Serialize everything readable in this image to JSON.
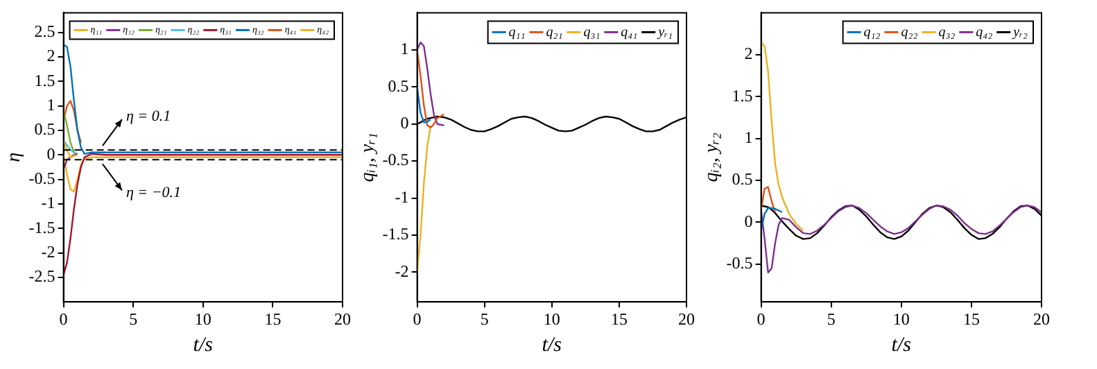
{
  "chart_data": [
    {
      "type": "line",
      "xlabel": "t/s",
      "ylabel": "η",
      "xlim": [
        0,
        20
      ],
      "xticks": [
        0,
        5,
        10,
        15,
        20
      ],
      "ylim": [
        -3,
        2.9
      ],
      "yticks": [
        -2.5,
        -2,
        -1.5,
        -1,
        -0.5,
        0,
        0.5,
        1,
        1.5,
        2,
        2.5
      ],
      "legend": "top right",
      "marker": "none",
      "line_style": "solid",
      "grid": false,
      "x": [
        0,
        0.25,
        0.5,
        0.75,
        1,
        1.25,
        1.5,
        2,
        3,
        5,
        10,
        15,
        20
      ],
      "series": [
        {
          "name": "η₁₁",
          "color": "#edb120",
          "values": [
            0.3,
            0.1,
            -0.05,
            -0.02,
            0,
            null,
            null,
            null,
            null,
            null,
            null,
            null,
            null
          ]
        },
        {
          "name": "η₁₂",
          "color": "#7e2f8e",
          "values": [
            -0.3,
            -0.1,
            -0.05,
            0,
            0.02,
            null,
            null,
            null,
            null,
            null,
            null,
            null,
            null
          ]
        },
        {
          "name": "η₂₁",
          "color": "#77ac30",
          "values": [
            0.9,
            0.6,
            0.25,
            0.05,
            null,
            null,
            null,
            null,
            null,
            null,
            null,
            null,
            null
          ]
        },
        {
          "name": "η₂₂",
          "color": "#4dbeee",
          "values": [
            0.3,
            0.2,
            0.1,
            0.05,
            0.02,
            null,
            null,
            null,
            null,
            null,
            null,
            null,
            null
          ]
        },
        {
          "name": "η₃₁",
          "color": "#a2142f",
          "values": [
            -2.45,
            -2.2,
            -1.7,
            -1.1,
            -0.6,
            -0.25,
            -0.05,
            0.02,
            0,
            0,
            0,
            0,
            0
          ]
        },
        {
          "name": "η₃₂",
          "color": "#0072bd",
          "values": [
            2.25,
            2.2,
            1.8,
            1.1,
            0.5,
            0.15,
            0.02,
            0.05,
            0.05,
            0.05,
            0.05,
            0.05,
            0.05
          ]
        },
        {
          "name": "η₄₁",
          "color": "#d95319",
          "values": [
            0.7,
            1.0,
            1.1,
            0.9,
            0.5,
            0.25,
            null,
            null,
            null,
            null,
            null,
            null,
            null
          ]
        },
        {
          "name": "η₄₂",
          "color": "#edb120",
          "values": [
            0,
            -0.4,
            -0.7,
            -0.75,
            -0.5,
            -0.2,
            -0.08,
            -0.05,
            -0.05,
            -0.05,
            -0.05,
            -0.05,
            -0.05
          ]
        }
      ],
      "ref_lines": [
        {
          "axis": "y",
          "value": 0.1,
          "label": "η = 0.1",
          "color": "#000000",
          "line_style": "dashed"
        },
        {
          "axis": "y",
          "value": -0.1,
          "label": "η = −0.1",
          "color": "#000000",
          "line_style": "dashed"
        }
      ]
    },
    {
      "type": "line",
      "xlabel": "t/s",
      "ylabel": "qᵢ₁, yᵣ₁",
      "xlim": [
        0,
        20
      ],
      "xticks": [
        0,
        5,
        10,
        15,
        20
      ],
      "ylim": [
        -2.4,
        1.5
      ],
      "yticks": [
        -2,
        -1.5,
        -1,
        -0.5,
        0,
        0.5,
        1
      ],
      "legend": "top right",
      "marker": "none",
      "line_style": "solid",
      "grid": false,
      "x": [
        0,
        0.25,
        0.5,
        0.75,
        1,
        1.25,
        1.5,
        2,
        2.5,
        3,
        3.5,
        4,
        4.5,
        5,
        5.5,
        6,
        6.5,
        7,
        7.5,
        8,
        8.5,
        9,
        9.5,
        10,
        10.5,
        11,
        11.5,
        12,
        12.5,
        13,
        13.5,
        14,
        14.5,
        15,
        15.5,
        16,
        16.5,
        17,
        17.5,
        18,
        18.5,
        19,
        19.5,
        20
      ],
      "series": [
        {
          "name": "q₁₁",
          "color": "#0072bd",
          "values": [
            0.5,
            0.15,
            0.02,
            0.03,
            0.06,
            null,
            null,
            null,
            null,
            null,
            null,
            null,
            null,
            null,
            null,
            null,
            null,
            null,
            null,
            null,
            null,
            null,
            null,
            null,
            null,
            null,
            null,
            null,
            null,
            null,
            null,
            null,
            null,
            null,
            null,
            null,
            null,
            null,
            null,
            null,
            null,
            null,
            null,
            null
          ]
        },
        {
          "name": "q₂₁",
          "color": "#d95319",
          "values": [
            1,
            0.65,
            0.25,
            -0.02,
            -0.05,
            0,
            0.08,
            0.13,
            null,
            null,
            null,
            null,
            null,
            null,
            null,
            null,
            null,
            null,
            null,
            null,
            null,
            null,
            null,
            null,
            null,
            null,
            null,
            null,
            null,
            null,
            null,
            null,
            null,
            null,
            null,
            null,
            null,
            null,
            null,
            null,
            null,
            null,
            null,
            null
          ]
        },
        {
          "name": "q₃₁",
          "color": "#edb120",
          "values": [
            -2,
            -1.5,
            -0.8,
            -0.3,
            -0.02,
            null,
            null,
            null,
            null,
            null,
            null,
            null,
            null,
            null,
            null,
            null,
            null,
            null,
            null,
            null,
            null,
            null,
            null,
            null,
            null,
            null,
            null,
            null,
            null,
            null,
            null,
            null,
            null,
            null,
            null,
            null,
            null,
            null,
            null,
            null,
            null,
            null,
            null,
            null
          ]
        },
        {
          "name": "q₄₁",
          "color": "#7e2f8e",
          "values": [
            1,
            1.1,
            1.05,
            0.75,
            0.4,
            0.12,
            0,
            -0.02,
            null,
            null,
            null,
            null,
            null,
            null,
            null,
            null,
            null,
            null,
            null,
            null,
            null,
            null,
            null,
            null,
            null,
            null,
            null,
            null,
            null,
            null,
            null,
            null,
            null,
            null,
            null,
            null,
            null,
            null,
            null,
            null,
            null,
            null,
            null,
            null
          ]
        },
        {
          "name": "yᵣ₁",
          "color": "#000000",
          "values": [
            0,
            0.02,
            0.05,
            0.07,
            0.08,
            0.09,
            0.1,
            0.09,
            0.06,
            0.01,
            -0.04,
            -0.08,
            -0.1,
            -0.1,
            -0.07,
            -0.03,
            0.02,
            0.07,
            0.09,
            0.1,
            0.08,
            0.04,
            -0.01,
            -0.05,
            -0.09,
            -0.1,
            -0.09,
            -0.05,
            -0.01,
            0.04,
            0.08,
            0.1,
            0.09,
            0.07,
            0.02,
            -0.03,
            -0.07,
            -0.1,
            -0.1,
            -0.08,
            -0.03,
            0.02,
            0.06,
            0.09
          ]
        }
      ]
    },
    {
      "type": "line",
      "xlabel": "t/s",
      "ylabel": "qᵢ₂, yᵣ₂",
      "xlim": [
        0,
        20
      ],
      "xticks": [
        0,
        5,
        10,
        15,
        20
      ],
      "ylim": [
        -0.95,
        2.5
      ],
      "yticks": [
        -0.5,
        0,
        0.5,
        1,
        1.5,
        2
      ],
      "legend": "top right",
      "marker": "none",
      "line_style": "solid",
      "grid": false,
      "x": [
        0,
        0.25,
        0.5,
        0.75,
        1,
        1.25,
        1.5,
        2,
        2.5,
        3,
        3.5,
        4,
        4.5,
        5,
        5.5,
        6,
        6.5,
        7,
        7.5,
        8,
        8.5,
        9,
        9.5,
        10,
        10.5,
        11,
        11.5,
        12,
        12.5,
        13,
        13.5,
        14,
        14.5,
        15,
        15.5,
        16,
        16.5,
        17,
        17.5,
        18,
        18.5,
        19,
        19.5,
        20
      ],
      "series": [
        {
          "name": "q₁₂",
          "color": "#0072bd",
          "values": [
            -0.1,
            0.1,
            0.17,
            0.17,
            0.16,
            0.14,
            0.12,
            null,
            null,
            null,
            null,
            null,
            null,
            null,
            null,
            null,
            null,
            null,
            null,
            null,
            null,
            null,
            null,
            null,
            null,
            null,
            null,
            null,
            null,
            null,
            null,
            null,
            null,
            null,
            null,
            null,
            null,
            null,
            null,
            null,
            null,
            null,
            null,
            null
          ]
        },
        {
          "name": "q₂₂",
          "color": "#d95319",
          "values": [
            0.15,
            0.4,
            0.42,
            0.25,
            0.12,
            null,
            null,
            null,
            null,
            null,
            null,
            null,
            null,
            null,
            null,
            null,
            null,
            null,
            null,
            null,
            null,
            null,
            null,
            null,
            null,
            null,
            null,
            null,
            null,
            null,
            null,
            null,
            null,
            null,
            null,
            null,
            null,
            null,
            null,
            null,
            null,
            null,
            null,
            null
          ]
        },
        {
          "name": "q₃₂",
          "color": "#edb120",
          "values": [
            2.15,
            2.1,
            1.8,
            1.2,
            0.7,
            0.45,
            0.3,
            0.1,
            -0.02,
            -0.1,
            null,
            null,
            null,
            null,
            null,
            null,
            null,
            null,
            null,
            null,
            null,
            null,
            null,
            null,
            null,
            null,
            null,
            null,
            null,
            null,
            null,
            null,
            null,
            null,
            null,
            null,
            null,
            null,
            null,
            null,
            null,
            null,
            null,
            null
          ]
        },
        {
          "name": "q₄₂",
          "color": "#7e2f8e",
          "values": [
            0.15,
            -0.2,
            -0.6,
            -0.55,
            -0.25,
            -0.03,
            0.05,
            0.03,
            -0.06,
            -0.13,
            -0.14,
            -0.1,
            -0.03,
            0.05,
            0.13,
            0.18,
            0.2,
            0.17,
            0.11,
            0.03,
            -0.05,
            -0.11,
            -0.14,
            -0.12,
            -0.07,
            0.01,
            0.09,
            0.16,
            0.2,
            0.19,
            0.15,
            0.08,
            -0.01,
            -0.08,
            -0.13,
            -0.14,
            -0.11,
            -0.04,
            0.04,
            0.12,
            0.18,
            0.2,
            0.18,
            0.12
          ]
        },
        {
          "name": "yᵣ₂",
          "color": "#000000",
          "values": [
            0.2,
            0.19,
            0.18,
            0.15,
            0.11,
            0.06,
            0.01,
            -0.08,
            -0.16,
            -0.2,
            -0.19,
            -0.13,
            -0.04,
            0.06,
            0.14,
            0.19,
            0.2,
            0.15,
            0.07,
            -0.03,
            -0.12,
            -0.18,
            -0.2,
            -0.17,
            -0.1,
            0,
            0.1,
            0.17,
            0.2,
            0.18,
            0.12,
            0.03,
            -0.07,
            -0.15,
            -0.2,
            -0.19,
            -0.14,
            -0.06,
            0.04,
            0.13,
            0.19,
            0.2,
            0.16,
            0.08
          ]
        }
      ]
    }
  ]
}
